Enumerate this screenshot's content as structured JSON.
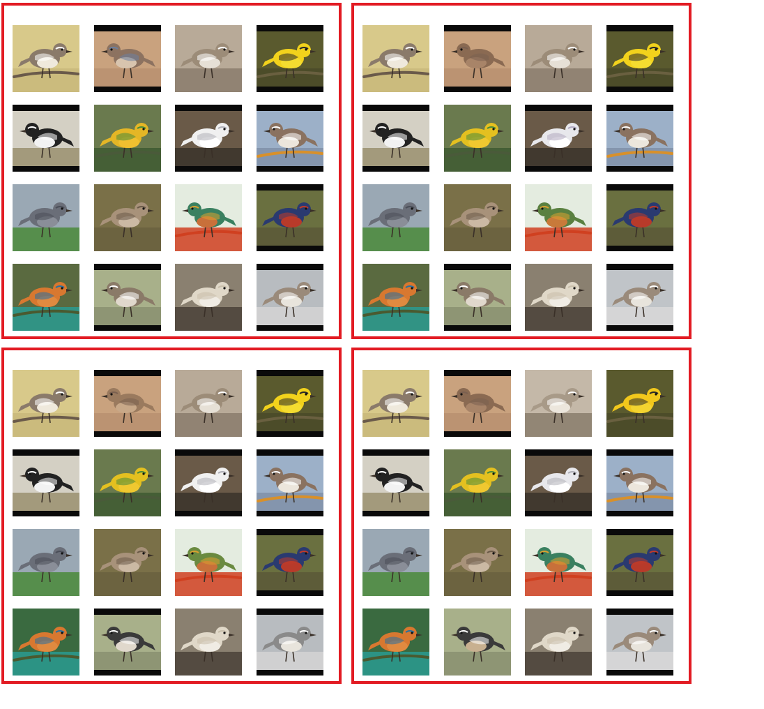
{
  "panel_border_color": "#e21b23",
  "panels": [
    {
      "name": "panel-top-left",
      "tiles": [
        {
          "bg": "#d8c98a",
          "bird": "#8a7a6a",
          "accent": "#ffffff",
          "belly": "#efe9dc",
          "bars": false,
          "ground": "#c9b97a",
          "perch": "#6a5a4a"
        },
        {
          "bg": "#c9a27e",
          "bird": "#8c7260",
          "accent": "#6b7fa0",
          "belly": "#d8c4ae",
          "bars": true,
          "ground": "#b89070",
          "perch": "none"
        },
        {
          "bg": "#b8aa98",
          "bird": "#9c8c78",
          "accent": "#ffffff",
          "belly": "#e6e0d6",
          "bars": false,
          "ground": "#8a7c6c",
          "perch": "none"
        },
        {
          "bg": "#5a5a2e",
          "bird": "#f2d21c",
          "accent": "#2a2a2a",
          "belly": "#f4dc30",
          "bars": true,
          "ground": "#4a4a28",
          "perch": "#6a6040"
        },
        {
          "bg": "#d4d0c4",
          "bird": "#222222",
          "accent": "#ffffff",
          "belly": "#f2f2f2",
          "bars": true,
          "ground": "#9a9070",
          "perch": "none"
        },
        {
          "bg": "#6a7a4e",
          "bird": "#e4b626",
          "accent": "#4a8a3a",
          "belly": "#f0c030",
          "bars": false,
          "ground": "#3e5a32",
          "perch": "#4a5a3a"
        },
        {
          "bg": "#6a5a48",
          "bird": "#f0f0f0",
          "accent": "#b0b0b8",
          "belly": "#ffffff",
          "bars": true,
          "ground": "#3a342c",
          "perch": "none"
        },
        {
          "bg": "#9cb0c8",
          "bird": "#8a7260",
          "accent": "#ffffff",
          "belly": "#ece6dc",
          "bars": true,
          "ground": "#8090a8",
          "perch": "#d8902a"
        },
        {
          "bg": "#9aa8b4",
          "bird": "#6a6e78",
          "accent": "#4a4e58",
          "belly": "#8a8e98",
          "bars": false,
          "ground": "#4a8a3a",
          "perch": "none"
        },
        {
          "bg": "#7a7048",
          "bird": "#a8927a",
          "accent": "#6a5a48",
          "belly": "#cbb9a4",
          "bars": false,
          "ground": "#6a6040",
          "perch": "none"
        },
        {
          "bg": "#e4ece0",
          "bird": "#3a8060",
          "accent": "#d8a030",
          "belly": "#c8703a",
          "bars": false,
          "ground": "#d04020",
          "perch": "#d04020"
        },
        {
          "bg": "#6a7040",
          "bird": "#2a3a70",
          "accent": "#c03a2a",
          "belly": "#b83a2a",
          "bars": true,
          "ground": "#5a5838",
          "perch": "none"
        },
        {
          "bg": "#5a6a40",
          "bird": "#d87830",
          "accent": "#2a70a0",
          "belly": "#e08a40",
          "bars": false,
          "ground": "#2a9a90",
          "perch": "#4a5a30"
        },
        {
          "bg": "#a8b08a",
          "bird": "#8a7a68",
          "accent": "#ffffff",
          "belly": "#e0d8cc",
          "bars": true,
          "ground": "#8a9070",
          "perch": "none"
        },
        {
          "bg": "#8a8070",
          "bird": "#e0d8c8",
          "accent": "#c8beaa",
          "belly": "#f0ece4",
          "bars": false,
          "ground": "#4a4238",
          "perch": "none"
        },
        {
          "bg": "#b8bcc0",
          "bird": "#9a8a7a",
          "accent": "#ffffff",
          "belly": "#e8e4dc",
          "bars": true,
          "ground": "#d4d4d4",
          "perch": "none"
        }
      ]
    },
    {
      "name": "panel-top-right",
      "tiles": [
        {
          "bg": "#d8c98a",
          "bird": "#8a7a6a",
          "accent": "#ffffff",
          "belly": "#efe9dc",
          "bars": false,
          "ground": "#c9b97a",
          "perch": "#6a5a4a"
        },
        {
          "bg": "#c9a27e",
          "bird": "#8a6a52",
          "accent": "#7a6050",
          "belly": "#a88468",
          "bars": true,
          "ground": "#b89070",
          "perch": "none"
        },
        {
          "bg": "#b8aa98",
          "bird": "#9c8c78",
          "accent": "#ffffff",
          "belly": "#e6e0d6",
          "bars": false,
          "ground": "#8a7c6c",
          "perch": "none"
        },
        {
          "bg": "#5a5a2e",
          "bird": "#f2d21c",
          "accent": "#2a2a2a",
          "belly": "#f4dc30",
          "bars": true,
          "ground": "#4a4a28",
          "perch": "#6a6040"
        },
        {
          "bg": "#d4d0c4",
          "bird": "#222222",
          "accent": "#ffffff",
          "belly": "#f2f2f2",
          "bars": true,
          "ground": "#9a9070",
          "perch": "none"
        },
        {
          "bg": "#6a7a4e",
          "bird": "#e4c020",
          "accent": "#4a8a3a",
          "belly": "#f0c830",
          "bars": false,
          "ground": "#3e5a32",
          "perch": "#4a5a3a"
        },
        {
          "bg": "#6a5a48",
          "bird": "#e8e8ec",
          "accent": "#b0a8c0",
          "belly": "#ffffff",
          "bars": true,
          "ground": "#3a342c",
          "perch": "none"
        },
        {
          "bg": "#9cb0c8",
          "bird": "#8a7260",
          "accent": "#ffffff",
          "belly": "#ece6dc",
          "bars": true,
          "ground": "#8090a8",
          "perch": "#d8902a"
        },
        {
          "bg": "#9aa8b4",
          "bird": "#6a6e78",
          "accent": "#4a4e58",
          "belly": "#8a8e98",
          "bars": false,
          "ground": "#4a8a3a",
          "perch": "none"
        },
        {
          "bg": "#7a7048",
          "bird": "#a8927a",
          "accent": "#6a5a48",
          "belly": "#cbb9a4",
          "bars": false,
          "ground": "#6a6040",
          "perch": "none"
        },
        {
          "bg": "#e4ece0",
          "bird": "#5a8040",
          "accent": "#d8a030",
          "belly": "#c87a3a",
          "bars": false,
          "ground": "#d04020",
          "perch": "#d04020"
        },
        {
          "bg": "#6a7040",
          "bird": "#2a3a70",
          "accent": "#c03a2a",
          "belly": "#b83a2a",
          "bars": true,
          "ground": "#5a5838",
          "perch": "none"
        },
        {
          "bg": "#5a6a40",
          "bird": "#d87830",
          "accent": "#2a70a0",
          "belly": "#e08a40",
          "bars": false,
          "ground": "#2a9a90",
          "perch": "#4a5a30"
        },
        {
          "bg": "#a8b08a",
          "bird": "#8a7a68",
          "accent": "#ffffff",
          "belly": "#e0d8cc",
          "bars": true,
          "ground": "#8a9070",
          "perch": "none"
        },
        {
          "bg": "#8a8070",
          "bird": "#e0d8c8",
          "accent": "#c8beaa",
          "belly": "#f0ece4",
          "bars": false,
          "ground": "#4a4238",
          "perch": "none"
        },
        {
          "bg": "#c0c4c8",
          "bird": "#9a8a7a",
          "accent": "#ffffff",
          "belly": "#e8e4dc",
          "bars": true,
          "ground": "#d8d8d8",
          "perch": "none"
        }
      ]
    },
    {
      "name": "panel-bottom-left",
      "tiles": [
        {
          "bg": "#d8c98a",
          "bird": "#8a7a6a",
          "accent": "#ffffff",
          "belly": "#efe9dc",
          "bars": false,
          "ground": "#c9b97a",
          "perch": "#6a5a4a"
        },
        {
          "bg": "#c9a27e",
          "bird": "#9a7a5e",
          "accent": "#7a6050",
          "belly": "#c8a888",
          "bars": true,
          "ground": "#b89070",
          "perch": "none"
        },
        {
          "bg": "#b8aa98",
          "bird": "#9c8c78",
          "accent": "#ffffff",
          "belly": "#e6e0d6",
          "bars": false,
          "ground": "#8a7c6c",
          "perch": "none"
        },
        {
          "bg": "#5a5a2e",
          "bird": "#f2d21c",
          "accent": "#2a2a2a",
          "belly": "#f4dc30",
          "bars": true,
          "ground": "#4a4a28",
          "perch": "#6a6040"
        },
        {
          "bg": "#d4d0c4",
          "bird": "#222222",
          "accent": "#ffffff",
          "belly": "#f2f2f2",
          "bars": true,
          "ground": "#9a9070",
          "perch": "none"
        },
        {
          "bg": "#6a7a4e",
          "bird": "#e4c020",
          "accent": "#4a8a3a",
          "belly": "#f0c830",
          "bars": false,
          "ground": "#3e5a32",
          "perch": "#4a5a3a"
        },
        {
          "bg": "#6a5a48",
          "bird": "#f0f0f0",
          "accent": "#b0b0b8",
          "belly": "#ffffff",
          "bars": true,
          "ground": "#3a342c",
          "perch": "none"
        },
        {
          "bg": "#9cb0c8",
          "bird": "#8a7260",
          "accent": "#ffffff",
          "belly": "#ece6dc",
          "bars": true,
          "ground": "#8090a8",
          "perch": "#d8902a"
        },
        {
          "bg": "#9aa8b4",
          "bird": "#6a6e78",
          "accent": "#4a4e58",
          "belly": "#8a8e98",
          "bars": false,
          "ground": "#4a8a3a",
          "perch": "none"
        },
        {
          "bg": "#7a7048",
          "bird": "#a8927a",
          "accent": "#6a5a48",
          "belly": "#cbb9a4",
          "bars": false,
          "ground": "#6a6040",
          "perch": "none"
        },
        {
          "bg": "#e4ece0",
          "bird": "#6a8a40",
          "accent": "#d8a030",
          "belly": "#c8703a",
          "bars": false,
          "ground": "#d04020",
          "perch": "#d04020"
        },
        {
          "bg": "#6a7040",
          "bird": "#2a3a70",
          "accent": "#c03a2a",
          "belly": "#b83a2a",
          "bars": true,
          "ground": "#5a5838",
          "perch": "none"
        },
        {
          "bg": "#3a6a40",
          "bird": "#d87830",
          "accent": "#2a70a0",
          "belly": "#e08a40",
          "bars": false,
          "ground": "#2a9a90",
          "perch": "#4a5a30"
        },
        {
          "bg": "#a8b08a",
          "bird": "#3a3a3a",
          "accent": "#ffffff",
          "belly": "#e0d8cc",
          "bars": true,
          "ground": "#8a9070",
          "perch": "none"
        },
        {
          "bg": "#8a8070",
          "bird": "#e0d8c8",
          "accent": "#c8beaa",
          "belly": "#f0ece4",
          "bars": false,
          "ground": "#4a4238",
          "perch": "none"
        },
        {
          "bg": "#b8bcc0",
          "bird": "#8a8a8a",
          "accent": "#ffffff",
          "belly": "#e8e4dc",
          "bars": true,
          "ground": "#d4d4d4",
          "perch": "none"
        }
      ]
    },
    {
      "name": "panel-bottom-right",
      "tiles": [
        {
          "bg": "#d8c98a",
          "bird": "#8a7a6a",
          "accent": "#ffffff",
          "belly": "#efe9dc",
          "bars": false,
          "ground": "#c9b97a",
          "perch": "#6a5a4a"
        },
        {
          "bg": "#c9a27e",
          "bird": "#8a6a52",
          "accent": "#7a6050",
          "belly": "#a88468",
          "bars": true,
          "ground": "#b89070",
          "perch": "none"
        },
        {
          "bg": "#c4b8a8",
          "bird": "#a89a88",
          "accent": "#ffffff",
          "belly": "#ece6dc",
          "bars": false,
          "ground": "#8a7c6c",
          "perch": "none"
        },
        {
          "bg": "#5a5a2e",
          "bird": "#f2c81c",
          "accent": "#2a2a2a",
          "belly": "#f4d430",
          "bars": false,
          "ground": "#4a4a28",
          "perch": "#6a6040"
        },
        {
          "bg": "#d4d0c4",
          "bird": "#222222",
          "accent": "#ffffff",
          "belly": "#f2f2f2",
          "bars": true,
          "ground": "#9a9070",
          "perch": "none"
        },
        {
          "bg": "#6a7a4e",
          "bird": "#e4c020",
          "accent": "#4a8a3a",
          "belly": "#f0c830",
          "bars": false,
          "ground": "#3e5a32",
          "perch": "#4a5a3a"
        },
        {
          "bg": "#6a5a48",
          "bird": "#e8e8ec",
          "accent": "#b0b0b8",
          "belly": "#ffffff",
          "bars": true,
          "ground": "#3a342c",
          "perch": "none"
        },
        {
          "bg": "#9cb0c8",
          "bird": "#8a7260",
          "accent": "#ffffff",
          "belly": "#ece6dc",
          "bars": true,
          "ground": "#8090a8",
          "perch": "#d8902a"
        },
        {
          "bg": "#9aa8b4",
          "bird": "#6a6e78",
          "accent": "#4a4e58",
          "belly": "#8a8e98",
          "bars": false,
          "ground": "#4a8a3a",
          "perch": "none"
        },
        {
          "bg": "#7a7048",
          "bird": "#a8927a",
          "accent": "#6a5a48",
          "belly": "#cbb9a4",
          "bars": false,
          "ground": "#6a6040",
          "perch": "none"
        },
        {
          "bg": "#e4ece0",
          "bird": "#3a8060",
          "accent": "#d8a030",
          "belly": "#c8703a",
          "bars": false,
          "ground": "#d04020",
          "perch": "#d04020"
        },
        {
          "bg": "#6a7040",
          "bird": "#2a3a70",
          "accent": "#c03a2a",
          "belly": "#b83a2a",
          "bars": true,
          "ground": "#5a5838",
          "perch": "none"
        },
        {
          "bg": "#3a6a40",
          "bird": "#d87830",
          "accent": "#2a70a0",
          "belly": "#e08a40",
          "bars": false,
          "ground": "#2a9a90",
          "perch": "#4a5a30"
        },
        {
          "bg": "#a8b08a",
          "bird": "#3a3a3a",
          "accent": "#ffffff",
          "belly": "#c8b090",
          "bars": false,
          "ground": "#8a9070",
          "perch": "none"
        },
        {
          "bg": "#8a8070",
          "bird": "#e0d8c8",
          "accent": "#c8beaa",
          "belly": "#f0ece4",
          "bars": false,
          "ground": "#4a4238",
          "perch": "none"
        },
        {
          "bg": "#c0c4c8",
          "bird": "#9a8a7a",
          "accent": "#ffffff",
          "belly": "#e8e4dc",
          "bars": true,
          "ground": "#d8d8d8",
          "perch": "none"
        }
      ]
    }
  ]
}
